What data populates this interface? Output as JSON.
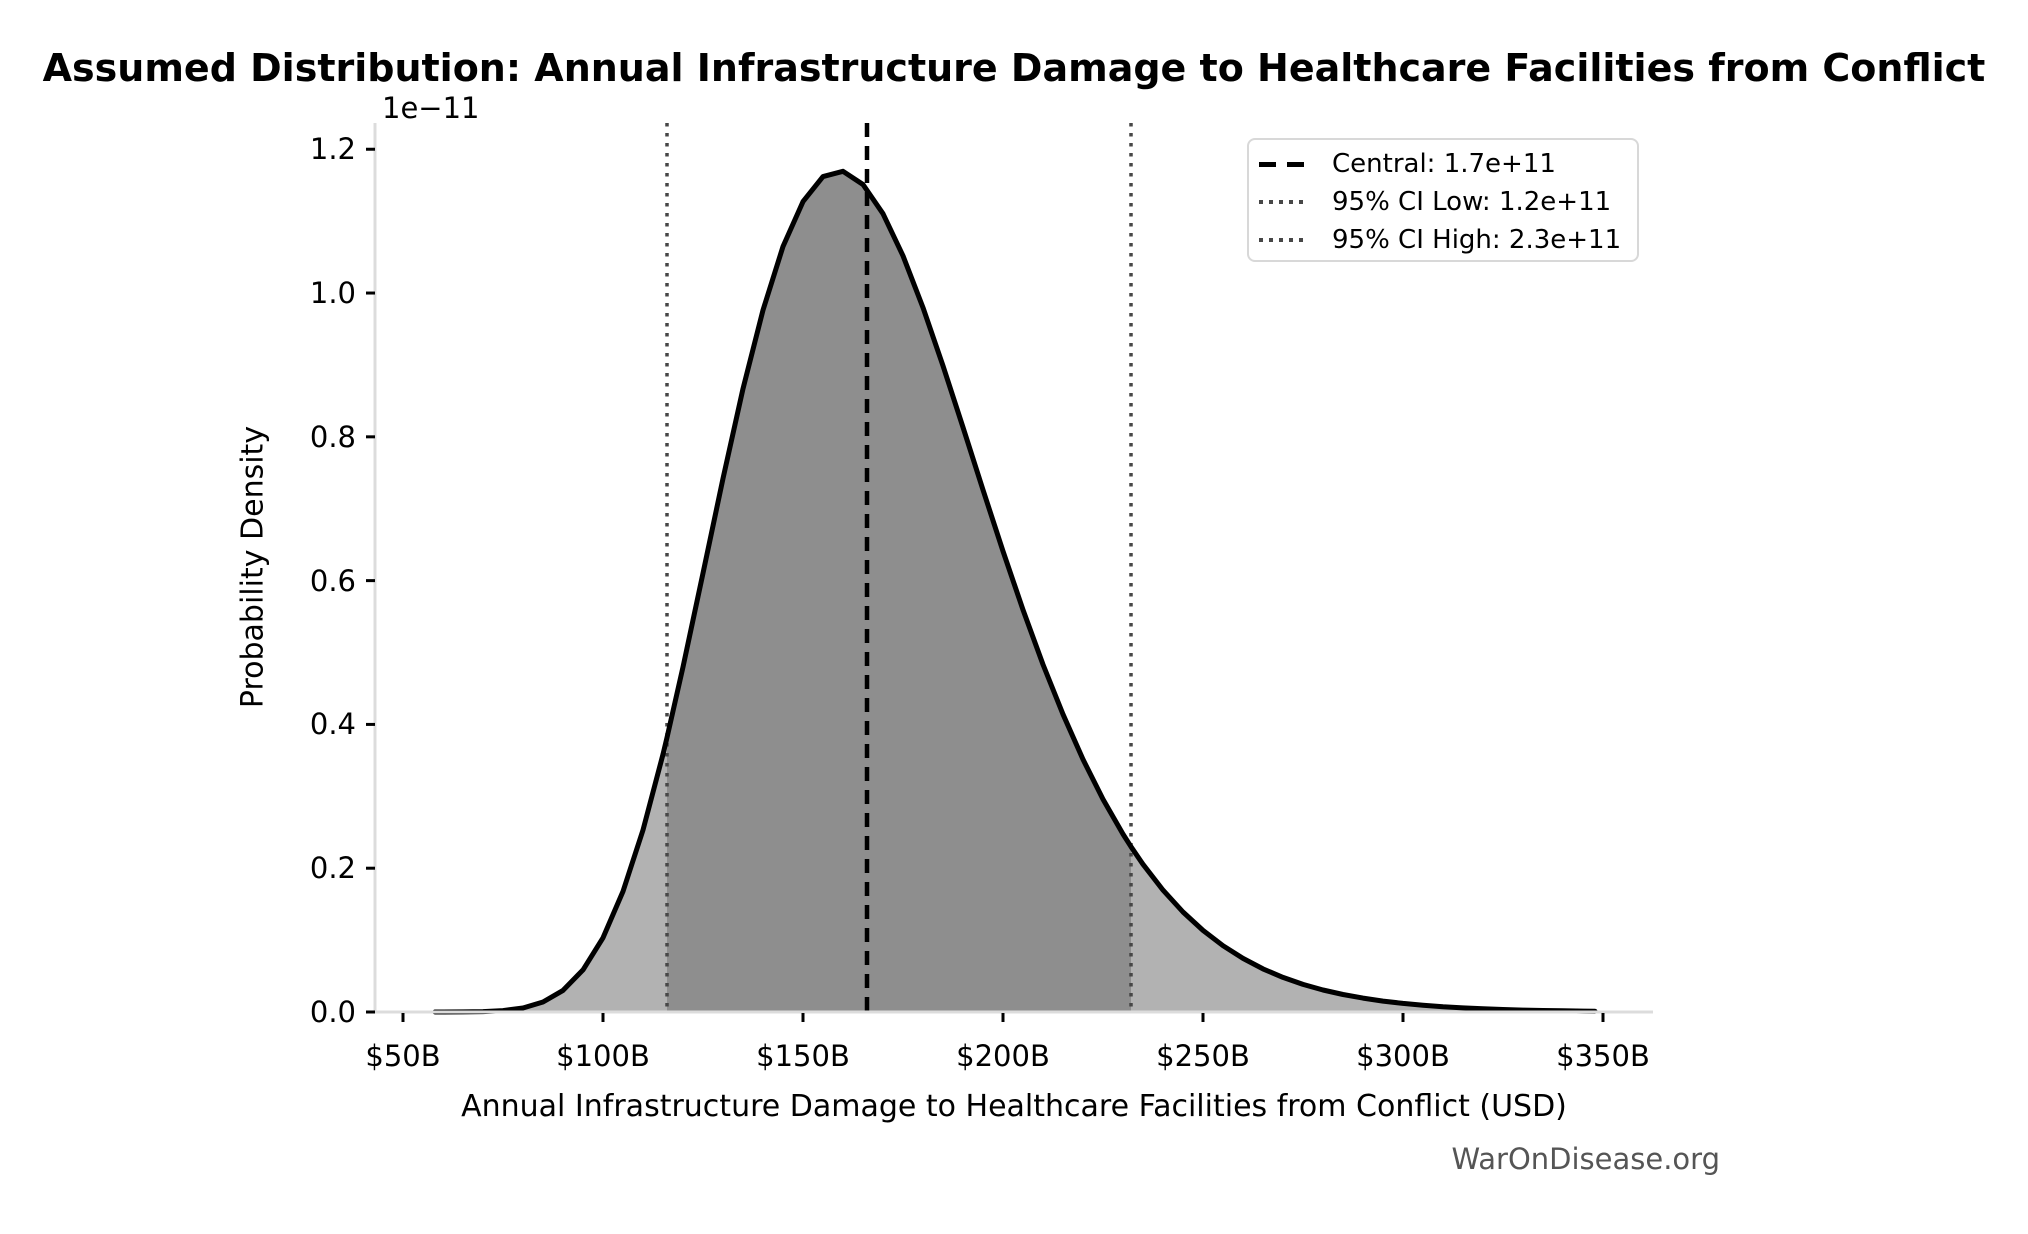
{
  "title": "Assumed Distribution: Annual Infrastructure Damage to Healthcare Facilities from Conflict",
  "watermark": "WarOnDisease.org",
  "chart_data": {
    "type": "area",
    "title": "Assumed Distribution: Annual Infrastructure Damage to Healthcare Facilities from Conflict",
    "xlabel": "Annual Infrastructure Damage to Healthcare Facilities from Conflict (USD)",
    "ylabel": "Probability Density",
    "y_offset_label": "1e−11",
    "legend_position": "upper right",
    "grid": false,
    "xlim_busd": [
      43.0,
      362.5
    ],
    "ylim_1e11": [
      0,
      1.2365
    ],
    "x_ticks": [
      {
        "label": "$50B",
        "busd": 50
      },
      {
        "label": "$100B",
        "busd": 100
      },
      {
        "label": "$150B",
        "busd": 150
      },
      {
        "label": "$200B",
        "busd": 200
      },
      {
        "label": "$250B",
        "busd": 250
      },
      {
        "label": "$300B",
        "busd": 300
      },
      {
        "label": "$350B",
        "busd": 350
      }
    ],
    "y_ticks": [
      {
        "label": "0.0",
        "value": 0.0
      },
      {
        "label": "0.2",
        "value": 0.2
      },
      {
        "label": "0.4",
        "value": 0.4
      },
      {
        "label": "0.6",
        "value": 0.6
      },
      {
        "label": "0.8",
        "value": 0.8
      },
      {
        "label": "1.0",
        "value": 1.0
      },
      {
        "label": "1.2",
        "value": 1.2
      }
    ],
    "markers": {
      "central": {
        "legend_label": "Central: 1.7e+11",
        "x_busd": 166,
        "line_style": "dashed",
        "color": "#000000"
      },
      "ci_low": {
        "legend_label": "95% CI Low: 1.2e+11",
        "x_busd": 116,
        "line_style": "dotted",
        "color": "#474747"
      },
      "ci_high": {
        "legend_label": "95% CI High: 2.3e+11",
        "x_busd": 232,
        "line_style": "dotted",
        "color": "#474747"
      }
    },
    "colors": {
      "fill_light": "#b2b2b2",
      "fill_dark": "#8e8e8e",
      "curve": "#000000",
      "spine": "#dcdcdc",
      "tick": "#000000"
    },
    "curve": {
      "x_busd": [
        58,
        60,
        65,
        70,
        75,
        80,
        85,
        90,
        95,
        100,
        105,
        110,
        115,
        116,
        120,
        125,
        130,
        135,
        140,
        145,
        150,
        155,
        160,
        165,
        170,
        175,
        180,
        185,
        190,
        195,
        200,
        205,
        210,
        215,
        220,
        225,
        230,
        232,
        235,
        240,
        245,
        250,
        255,
        260,
        265,
        270,
        275,
        280,
        285,
        290,
        295,
        300,
        305,
        310,
        315,
        320,
        325,
        330,
        335,
        340,
        345,
        348
      ],
      "density_1e11": [
        0.0,
        0.0,
        0.0001,
        0.0006,
        0.002,
        0.0056,
        0.0139,
        0.0301,
        0.0586,
        0.1032,
        0.1677,
        0.2532,
        0.3585,
        0.3817,
        0.4798,
        0.6103,
        0.742,
        0.8669,
        0.9763,
        1.0647,
        1.1272,
        1.162,
        1.1693,
        1.1509,
        1.1104,
        1.0518,
        0.9798,
        0.8988,
        0.8132,
        0.7262,
        0.6409,
        0.5594,
        0.4834,
        0.414,
        0.3514,
        0.2959,
        0.2474,
        0.2299,
        0.2054,
        0.1696,
        0.1391,
        0.1135,
        0.0922,
        0.0745,
        0.06,
        0.0481,
        0.0384,
        0.0306,
        0.0243,
        0.0193,
        0.0152,
        0.012,
        0.0094,
        0.0073,
        0.0057,
        0.0045,
        0.0035,
        0.0027,
        0.0021,
        0.0016,
        0.0013,
        0.0011
      ]
    }
  }
}
